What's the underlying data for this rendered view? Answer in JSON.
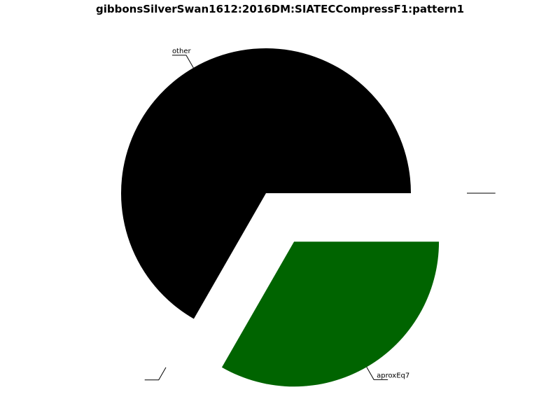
{
  "chart_data": {
    "type": "pie",
    "title": "gibbonsSilverSwan1612:2016DM:SIATECCompressF1:pattern1",
    "slices": [
      {
        "label": "other",
        "value": 66.7,
        "color": "#000000",
        "exploded": false
      },
      {
        "label": "",
        "value": 0.0,
        "color": "#ffffff",
        "exploded": true
      },
      {
        "label": "aproxEq7",
        "value": 33.3,
        "color": "#006400",
        "exploded": true
      },
      {
        "label": "",
        "value": 0.0,
        "color": "#ffffff",
        "exploded": true
      }
    ],
    "legend": "none"
  }
}
